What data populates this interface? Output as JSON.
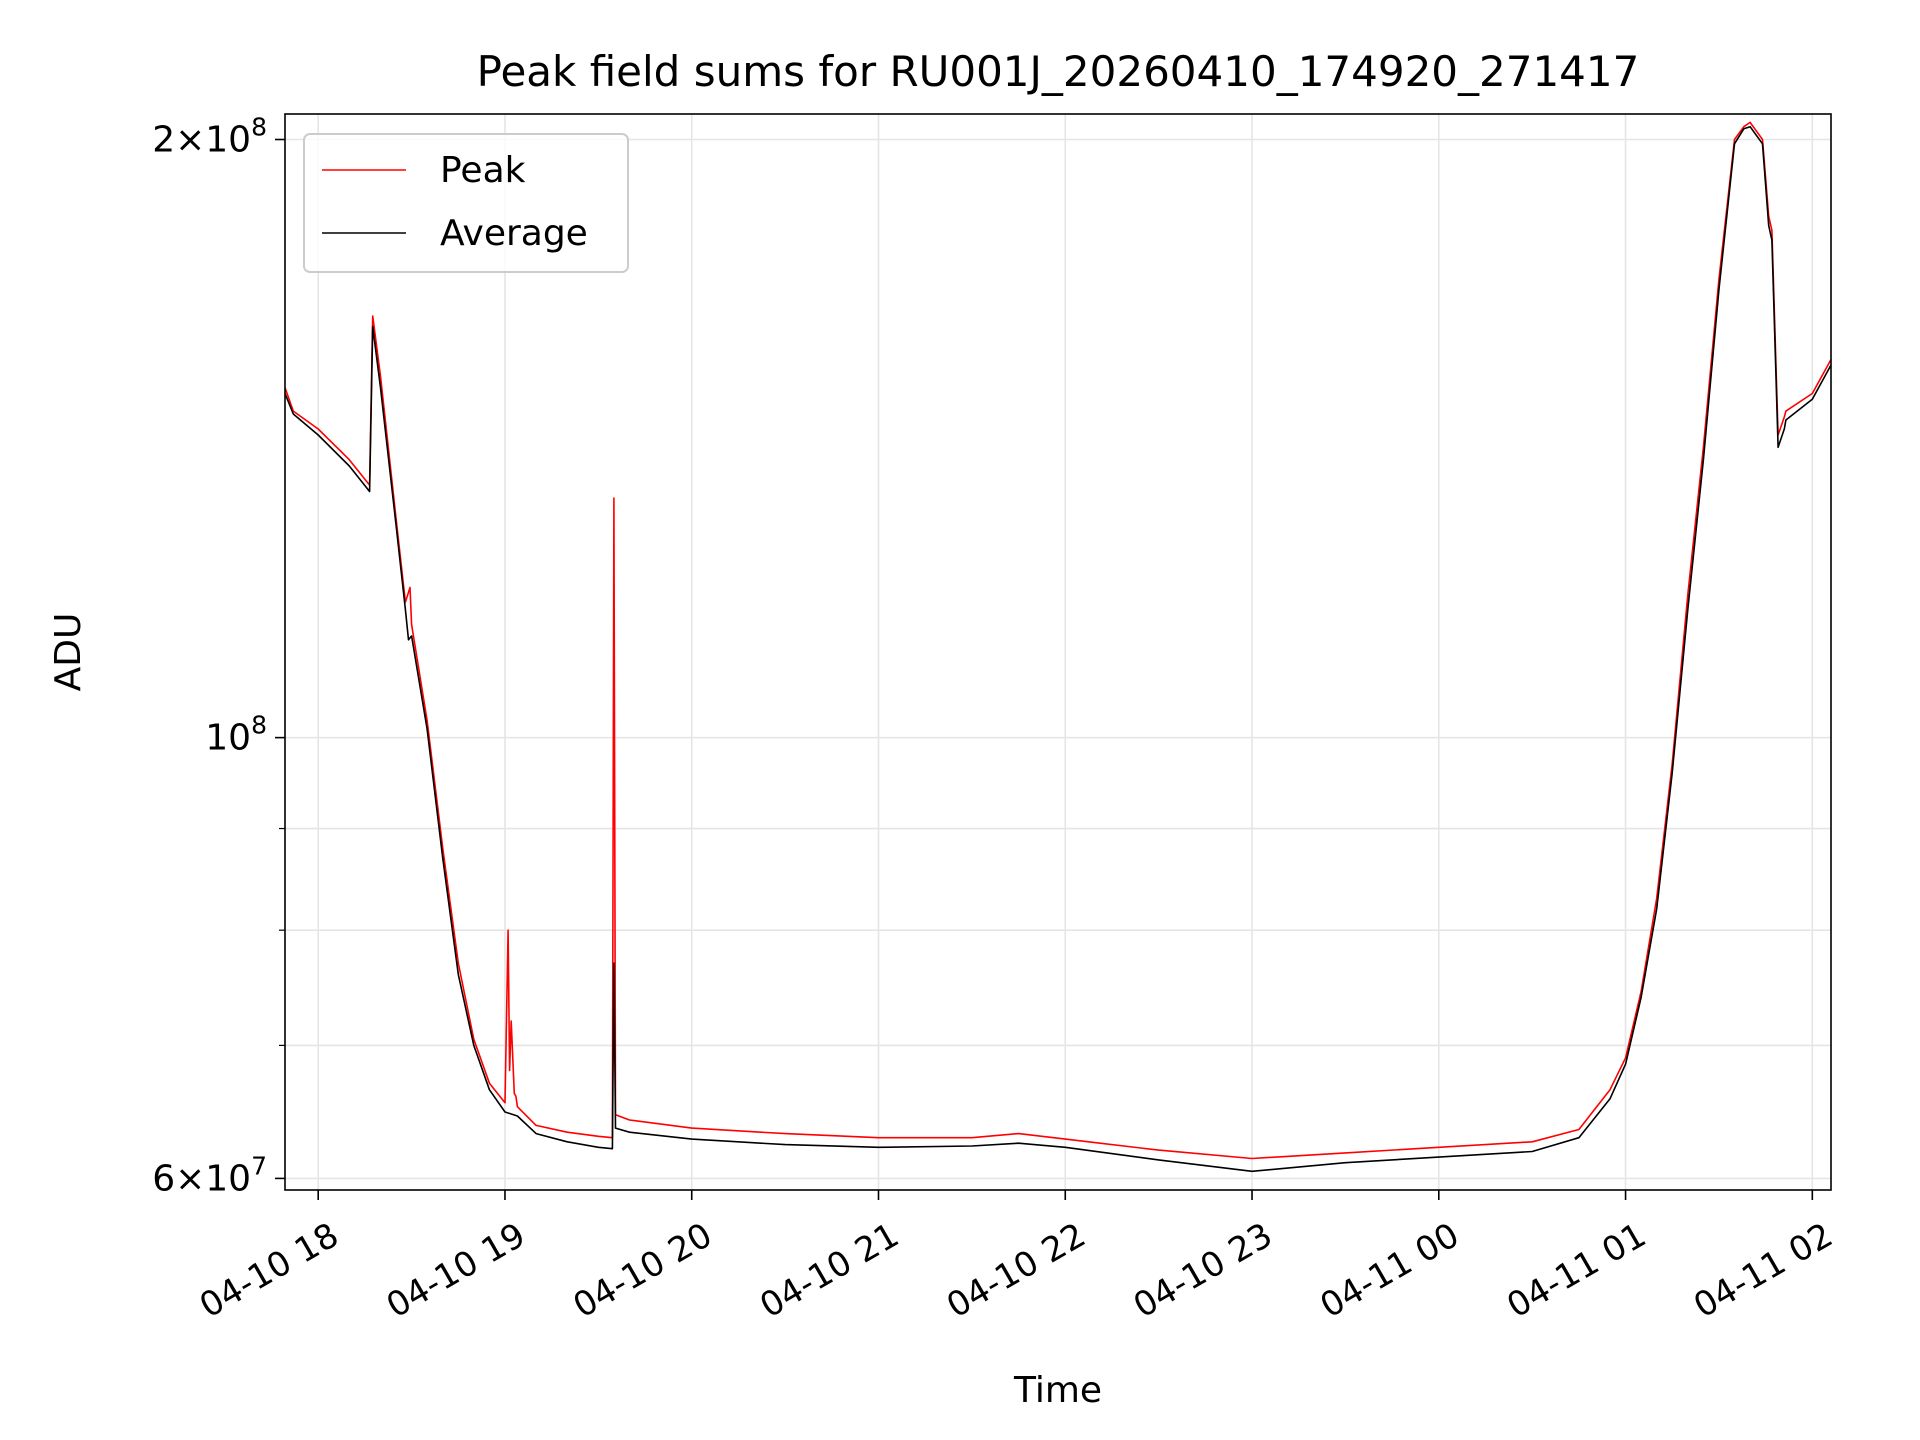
{
  "chart_data": {
    "type": "line",
    "title": "Peak field sums for RU001J_20260410_174920_271417",
    "xlabel": "Time",
    "ylabel": "ADU",
    "yscale": "log",
    "ylim": [
      59200000,
      206000000
    ],
    "xlim": [
      "2026-04-10 17:49:20",
      "2026-04-11 02:06:00"
    ],
    "x_ticks": [
      {
        "t": "2026-04-10 18:00",
        "label": "04-10 18"
      },
      {
        "t": "2026-04-10 19:00",
        "label": "04-10 19"
      },
      {
        "t": "2026-04-10 20:00",
        "label": "04-10 20"
      },
      {
        "t": "2026-04-10 21:00",
        "label": "04-10 21"
      },
      {
        "t": "2026-04-10 22:00",
        "label": "04-10 22"
      },
      {
        "t": "2026-04-10 23:00",
        "label": "04-10 23"
      },
      {
        "t": "2026-04-11 00:00",
        "label": "04-11 00"
      },
      {
        "t": "2026-04-11 01:00",
        "label": "04-11 01"
      },
      {
        "t": "2026-04-11 02:00",
        "label": "04-11 02"
      }
    ],
    "y_major_ticks": [
      {
        "value": 60000000,
        "mantissa": "6",
        "exp": "7"
      },
      {
        "value": 100000000,
        "mantissa": "",
        "exp": "8"
      },
      {
        "value": 200000000,
        "mantissa": "2",
        "exp": "8"
      }
    ],
    "y_minor_ticks": [
      70000000,
      80000000,
      90000000
    ],
    "grid": true,
    "legend_position": "top-left",
    "colors": {
      "peak": "#ff0000",
      "average": "#000000"
    },
    "series": [
      {
        "name": "Peak",
        "color": "#ff0000",
        "x": [
          "2026-04-10 17:49:20",
          "2026-04-10 17:52:00",
          "2026-04-10 18:00:00",
          "2026-04-10 18:10:00",
          "2026-04-10 18:16:30",
          "2026-04-10 18:17:30",
          "2026-04-10 18:20:00",
          "2026-04-10 18:25:00",
          "2026-04-10 18:28:00",
          "2026-04-10 18:29:30",
          "2026-04-10 18:30:00",
          "2026-04-10 18:35:00",
          "2026-04-10 18:40:00",
          "2026-04-10 18:45:00",
          "2026-04-10 18:50:00",
          "2026-04-10 18:55:00",
          "2026-04-10 19:00:00",
          "2026-04-10 19:01:00",
          "2026-04-10 19:01:30",
          "2026-04-10 19:02:00",
          "2026-04-10 19:03:00",
          "2026-04-10 19:03:30",
          "2026-04-10 19:04:00",
          "2026-04-10 19:10:00",
          "2026-04-10 19:20:00",
          "2026-04-10 19:30:00",
          "2026-04-10 19:34:30",
          "2026-04-10 19:35:00",
          "2026-04-10 19:35:30",
          "2026-04-10 19:40:00",
          "2026-04-10 20:00:00",
          "2026-04-10 20:30:00",
          "2026-04-10 21:00:00",
          "2026-04-10 21:30:00",
          "2026-04-10 21:45:00",
          "2026-04-10 22:00:00",
          "2026-04-10 22:30:00",
          "2026-04-10 23:00:00",
          "2026-04-10 23:30:00",
          "2026-04-11 00:00:00",
          "2026-04-11 00:30:00",
          "2026-04-11 00:45:00",
          "2026-04-11 00:55:00",
          "2026-04-11 01:00:00",
          "2026-04-11 01:05:00",
          "2026-04-11 01:10:00",
          "2026-04-11 01:15:00",
          "2026-04-11 01:20:00",
          "2026-04-11 01:25:00",
          "2026-04-11 01:30:00",
          "2026-04-11 01:35:00",
          "2026-04-11 01:38:00",
          "2026-04-11 01:40:00",
          "2026-04-11 01:44:00",
          "2026-04-11 01:46:00",
          "2026-04-11 01:47:00",
          "2026-04-11 01:49:00",
          "2026-04-11 01:51:00",
          "2026-04-11 01:51:30",
          "2026-04-11 02:00:00",
          "2026-04-11 02:06:00"
        ],
        "values": [
          150000000,
          146000000,
          143000000,
          138000000,
          134000000,
          163000000,
          152000000,
          129000000,
          117000000,
          119000000,
          114000000,
          102000000,
          88000000,
          77000000,
          70500000,
          67000000,
          65500000,
          80000000,
          68000000,
          72000000,
          66200000,
          66000000,
          65200000,
          63800000,
          63300000,
          63000000,
          62900000,
          132000000,
          64600000,
          64200000,
          63600000,
          63200000,
          62900000,
          62900000,
          63200000,
          62800000,
          62000000,
          61400000,
          61800000,
          62200000,
          62600000,
          63500000,
          66500000,
          69000000,
          74500000,
          83000000,
          97000000,
          118000000,
          140000000,
          170000000,
          200000000,
          203000000,
          204000000,
          200000000,
          183000000,
          180000000,
          142000000,
          145000000,
          146000000,
          149000000,
          155000000
        ]
      },
      {
        "name": "Average",
        "color": "#000000",
        "x": [
          "2026-04-10 17:49:20",
          "2026-04-10 17:52:00",
          "2026-04-10 18:00:00",
          "2026-04-10 18:10:00",
          "2026-04-10 18:16:30",
          "2026-04-10 18:17:30",
          "2026-04-10 18:20:00",
          "2026-04-10 18:25:00",
          "2026-04-10 18:28:00",
          "2026-04-10 18:29:00",
          "2026-04-10 18:30:00",
          "2026-04-10 18:35:00",
          "2026-04-10 18:40:00",
          "2026-04-10 18:45:00",
          "2026-04-10 18:50:00",
          "2026-04-10 18:55:00",
          "2026-04-10 19:00:00",
          "2026-04-10 19:04:00",
          "2026-04-10 19:10:00",
          "2026-04-10 19:20:00",
          "2026-04-10 19:30:00",
          "2026-04-10 19:34:30",
          "2026-04-10 19:35:00",
          "2026-04-10 19:35:30",
          "2026-04-10 19:40:00",
          "2026-04-10 20:00:00",
          "2026-04-10 20:30:00",
          "2026-04-10 21:00:00",
          "2026-04-10 21:30:00",
          "2026-04-10 21:45:00",
          "2026-04-10 22:00:00",
          "2026-04-10 22:30:00",
          "2026-04-10 23:00:00",
          "2026-04-10 23:30:00",
          "2026-04-11 00:00:00",
          "2026-04-11 00:30:00",
          "2026-04-11 00:45:00",
          "2026-04-11 00:55:00",
          "2026-04-11 01:00:00",
          "2026-04-11 01:05:00",
          "2026-04-11 01:10:00",
          "2026-04-11 01:15:00",
          "2026-04-11 01:20:00",
          "2026-04-11 01:25:00",
          "2026-04-11 01:30:00",
          "2026-04-11 01:35:00",
          "2026-04-11 01:38:00",
          "2026-04-11 01:40:00",
          "2026-04-11 01:44:00",
          "2026-04-11 01:46:00",
          "2026-04-11 01:47:00",
          "2026-04-11 01:49:00",
          "2026-04-11 01:51:00",
          "2026-04-11 01:51:30",
          "2026-04-11 02:00:00",
          "2026-04-11 02:06:00"
        ],
        "values": [
          149000000,
          145500000,
          142000000,
          137000000,
          133000000,
          161000000,
          150000000,
          128000000,
          116000000,
          112000000,
          112500000,
          101000000,
          87000000,
          76000000,
          70000000,
          66500000,
          64800000,
          64500000,
          63200000,
          62600000,
          62200000,
          62100000,
          77000000,
          63600000,
          63300000,
          62800000,
          62400000,
          62200000,
          62300000,
          62500000,
          62200000,
          61300000,
          60500000,
          61100000,
          61500000,
          61900000,
          62900000,
          65800000,
          68500000,
          74000000,
          82000000,
          96000000,
          116000000,
          138000000,
          168000000,
          199000000,
          202500000,
          203000000,
          199000000,
          181000000,
          178000000,
          140000000,
          143000000,
          144500000,
          148000000,
          154000000
        ]
      }
    ]
  }
}
